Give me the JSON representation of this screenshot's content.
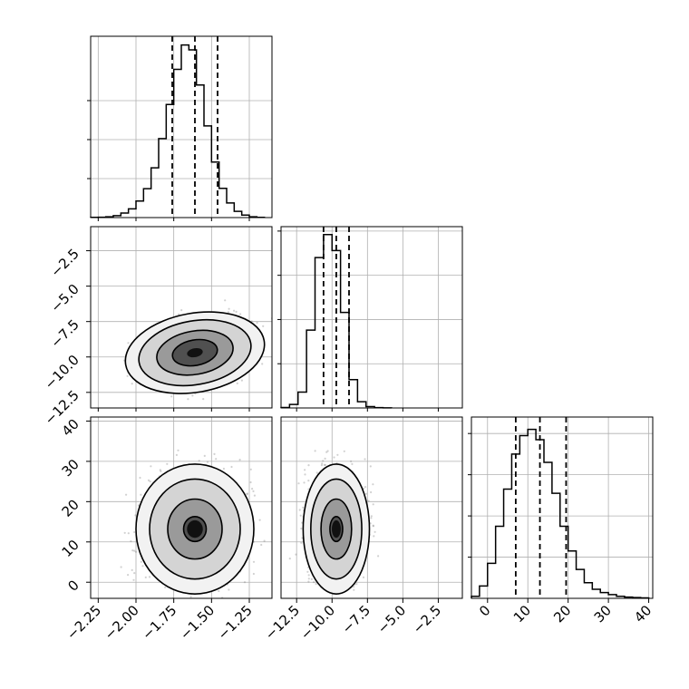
{
  "chart_data": {
    "type": "corner-plot",
    "parameters": 3,
    "grid": true,
    "colors": {
      "hist_line": "#000000",
      "quantile_line": "#000000",
      "scatter": "#7a7a7a",
      "grid": "#b0b0b0",
      "density_dark": "#111111"
    },
    "axes": {
      "p0": {
        "range": [
          -2.3,
          -1.1
        ],
        "ticks": [
          -2.25,
          -2.0,
          -1.75,
          -1.5,
          -1.25
        ],
        "tick_labels": [
          "−2.25",
          "−2.00",
          "−1.75",
          "−1.50",
          "−1.25"
        ]
      },
      "p1": {
        "range": [
          -13.6,
          -0.8
        ],
        "ticks": [
          -12.5,
          -10.0,
          -7.5,
          -5.0,
          -2.5
        ],
        "tick_labels": [
          "−12.5",
          "−10.0",
          "−7.5",
          "−5.0",
          "−2.5"
        ]
      },
      "p2": {
        "range": [
          -4,
          41
        ],
        "ticks": [
          0,
          10,
          20,
          30,
          40
        ],
        "tick_labels": [
          "0",
          "10",
          "20",
          "30",
          "40"
        ]
      }
    },
    "quantiles": {
      "p0": [
        -1.76,
        -1.61,
        -1.46
      ],
      "p1": [
        -10.6,
        -9.7,
        -8.8
      ],
      "p2": [
        7,
        13,
        19.5
      ]
    },
    "histograms": [
      {
        "param": "p0",
        "bin_edges": [
          -2.3,
          -2.25,
          -2.2,
          -2.15,
          -2.1,
          -2.05,
          -2.0,
          -1.95,
          -1.9,
          -1.85,
          -1.8,
          -1.75,
          -1.7,
          -1.65,
          -1.6,
          -1.55,
          -1.5,
          -1.45,
          -1.4,
          -1.35,
          -1.3,
          -1.25,
          -1.2,
          -1.15
        ],
        "counts": [
          1,
          2,
          4,
          10,
          23,
          45,
          85,
          148,
          255,
          405,
          580,
          760,
          885,
          860,
          680,
          470,
          285,
          150,
          75,
          32,
          13,
          4,
          1
        ],
        "ymax": 930,
        "ticks": [
          200,
          400,
          600
        ]
      },
      {
        "param": "p1",
        "bin_edges": [
          -13.6,
          -13.0,
          -12.4,
          -11.8,
          -11.2,
          -10.6,
          -10.0,
          -9.4,
          -8.8,
          -8.2,
          -7.6,
          -7.0,
          -6.4,
          -5.8
        ],
        "counts": [
          5,
          40,
          180,
          880,
          1700,
          1960,
          1780,
          1080,
          320,
          70,
          15,
          4,
          1
        ],
        "ymax": 2050,
        "ticks": [
          500,
          1000,
          1500,
          2000
        ]
      },
      {
        "param": "p2",
        "bin_edges": [
          -4,
          -2,
          0,
          2,
          4,
          6,
          8,
          10,
          12,
          14,
          16,
          18,
          20,
          22,
          24,
          26,
          28,
          30,
          32,
          34,
          36,
          38,
          40
        ],
        "counts": [
          5,
          30,
          85,
          175,
          265,
          350,
          395,
          410,
          385,
          330,
          255,
          175,
          115,
          70,
          38,
          22,
          14,
          9,
          5,
          3,
          2,
          1
        ],
        "ymax": 440,
        "ticks": [
          100,
          200,
          300,
          400
        ]
      }
    ],
    "joint": [
      {
        "x": "p0",
        "y": "p1",
        "center": [
          -1.61,
          -9.7
        ],
        "sigma_x": 0.15,
        "sigma_y": 0.9,
        "rotation_deg": 10,
        "levels": [
          1.0,
          1.7,
          2.5,
          3.1
        ]
      },
      {
        "x": "p0",
        "y": "p2",
        "center": [
          -1.61,
          13.2
        ],
        "sigma_x": 0.15,
        "sigma_y": 6.2,
        "rotation_deg": 0,
        "levels": [
          0.5,
          1.2,
          2.0,
          2.6
        ]
      },
      {
        "x": "p1",
        "y": "p2",
        "center": [
          -9.7,
          13.2
        ],
        "sigma_x": 0.9,
        "sigma_y": 6.2,
        "rotation_deg": 0,
        "levels": [
          0.5,
          1.2,
          2.0,
          2.6
        ]
      }
    ]
  }
}
